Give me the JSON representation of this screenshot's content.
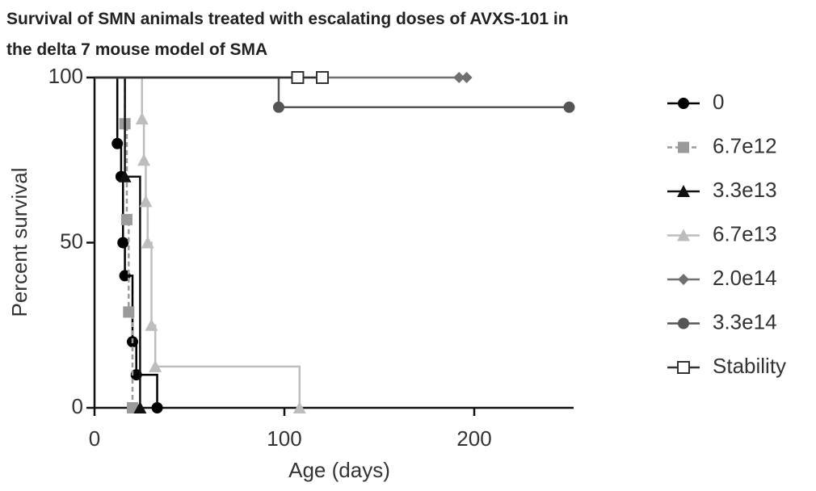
{
  "chart_data": {
    "type": "survival",
    "title": [
      "Survival of SMN animals treated with escalating doses of AVXS-101 in",
      "the delta 7 mouse model of SMA"
    ],
    "x_label": "Age (days)",
    "y_label": "Percent survival",
    "xlim": [
      0,
      250
    ],
    "ylim": [
      0,
      100
    ],
    "xticks": [
      0,
      100,
      200
    ],
    "yticks": [
      0,
      50,
      100
    ],
    "series": [
      {
        "name": "0",
        "color": "#000000",
        "marker": "circle",
        "dashed": false,
        "x": [
          0,
          12,
          14,
          15,
          16,
          20,
          22,
          33
        ],
        "values": [
          100,
          80,
          70,
          50,
          40,
          20,
          10,
          0
        ]
      },
      {
        "name": "6.7e12",
        "color": "#9a9a9a",
        "marker": "square",
        "dashed": true,
        "x": [
          0,
          16,
          17,
          18,
          20
        ],
        "values": [
          100,
          86,
          57,
          29,
          0
        ]
      },
      {
        "name": "3.3e13",
        "color": "#111111",
        "marker": "triangle",
        "dashed": false,
        "x": [
          0,
          16,
          24
        ],
        "values": [
          100,
          70,
          0
        ]
      },
      {
        "name": "6.7e13",
        "color": "#bdbdbd",
        "marker": "triangle",
        "dashed": false,
        "x": [
          0,
          25,
          26,
          27,
          28,
          30,
          32,
          108
        ],
        "values": [
          100,
          87.5,
          75,
          62.5,
          50,
          25,
          12.5,
          0
        ]
      },
      {
        "name": "2.0e14",
        "color": "#707070",
        "marker": "diamond",
        "dashed": false,
        "x": [
          0,
          192,
          196
        ],
        "values": [
          100,
          100,
          100
        ]
      },
      {
        "name": "3.3e14",
        "color": "#555555",
        "marker": "circle",
        "dashed": false,
        "x": [
          0,
          97,
          250
        ],
        "values": [
          100,
          91,
          91
        ]
      },
      {
        "name": "Stability",
        "color": "#333333",
        "marker": "open-square",
        "dashed": false,
        "x": [
          0,
          107,
          120
        ],
        "values": [
          100,
          100,
          100
        ]
      }
    ]
  }
}
